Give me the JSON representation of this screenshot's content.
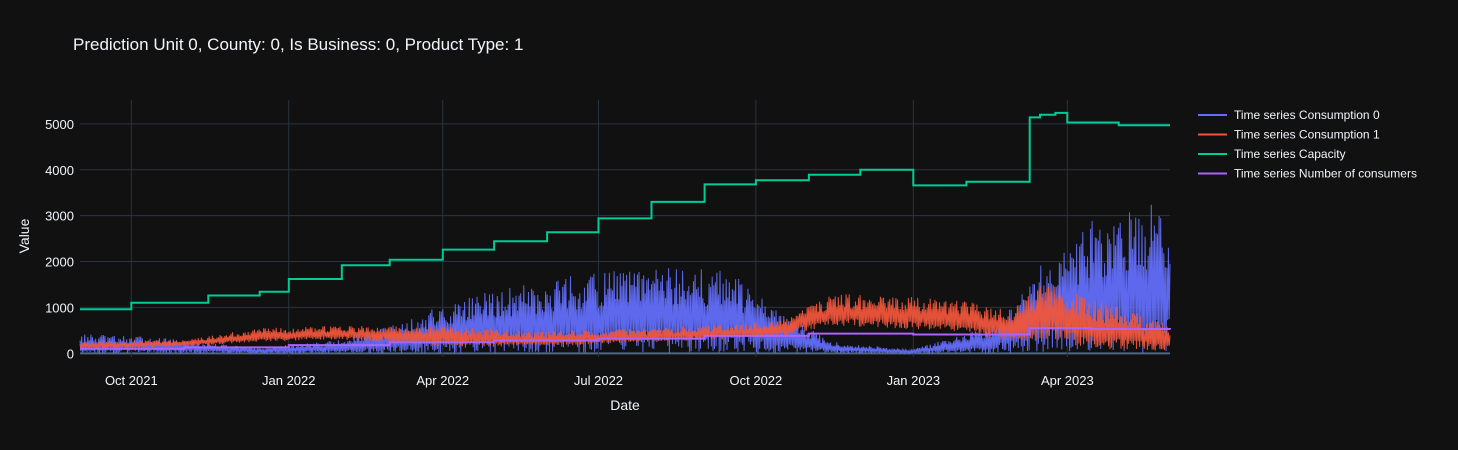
{
  "chart_data": {
    "type": "line",
    "title": "Prediction Unit 0, County: 0, Is Business: 0, Product Type: 1",
    "xlabel": "Date",
    "ylabel": "Value",
    "xlim": [
      "2021-09-01",
      "2023-05-31"
    ],
    "ylim": [
      -80,
      5520
    ],
    "y_ticks": [
      0,
      1000,
      2000,
      3000,
      4000,
      5000
    ],
    "x_ticks": [
      {
        "date": "2021-10-01",
        "label": "Oct 2021"
      },
      {
        "date": "2022-01-01",
        "label": "Jan 2022"
      },
      {
        "date": "2022-04-01",
        "label": "Apr 2022"
      },
      {
        "date": "2022-07-01",
        "label": "Jul 2022"
      },
      {
        "date": "2022-10-01",
        "label": "Oct 2022"
      },
      {
        "date": "2023-01-01",
        "label": "Jan 2023"
      },
      {
        "date": "2023-04-01",
        "label": "Apr 2023"
      }
    ],
    "grid": true,
    "legend_position": "top-right",
    "series": [
      {
        "name": "Time series Consumption 0",
        "color": "#636efa",
        "style": "dense-oscillation",
        "envelope": [
          {
            "date": "2021-09-01",
            "low": 0,
            "high": 420
          },
          {
            "date": "2021-10-15",
            "low": 0,
            "high": 350
          },
          {
            "date": "2021-12-15",
            "low": 0,
            "high": 120
          },
          {
            "date": "2022-02-01",
            "low": 0,
            "high": 300
          },
          {
            "date": "2022-03-01",
            "low": 0,
            "high": 600
          },
          {
            "date": "2022-04-01",
            "low": 0,
            "high": 1050
          },
          {
            "date": "2022-05-01",
            "low": 0,
            "high": 1400
          },
          {
            "date": "2022-06-15",
            "low": 0,
            "high": 1700
          },
          {
            "date": "2022-08-01",
            "low": 0,
            "high": 1900
          },
          {
            "date": "2022-09-15",
            "low": 0,
            "high": 1800
          },
          {
            "date": "2022-10-15",
            "low": 0,
            "high": 900
          },
          {
            "date": "2022-11-15",
            "low": 0,
            "high": 250
          },
          {
            "date": "2022-12-31",
            "low": 0,
            "high": 80
          },
          {
            "date": "2023-02-15",
            "low": 0,
            "high": 600
          },
          {
            "date": "2023-03-15",
            "low": 0,
            "high": 2000
          },
          {
            "date": "2023-04-15",
            "low": 0,
            "high": 2900
          },
          {
            "date": "2023-05-31",
            "low": 0,
            "high": 3400
          }
        ]
      },
      {
        "name": "Time series Consumption 1",
        "color": "#ef553b",
        "style": "dense-oscillation",
        "envelope": [
          {
            "date": "2021-09-01",
            "low": 100,
            "high": 250
          },
          {
            "date": "2021-11-01",
            "low": 150,
            "high": 300
          },
          {
            "date": "2021-12-15",
            "low": 250,
            "high": 550
          },
          {
            "date": "2022-02-01",
            "low": 300,
            "high": 600
          },
          {
            "date": "2022-04-01",
            "low": 150,
            "high": 600
          },
          {
            "date": "2022-06-01",
            "low": 150,
            "high": 500
          },
          {
            "date": "2022-08-01",
            "low": 250,
            "high": 550
          },
          {
            "date": "2022-10-15",
            "low": 350,
            "high": 700
          },
          {
            "date": "2022-11-15",
            "low": 600,
            "high": 1300
          },
          {
            "date": "2023-01-15",
            "low": 500,
            "high": 1200
          },
          {
            "date": "2023-03-01",
            "low": 250,
            "high": 1000
          },
          {
            "date": "2023-03-20",
            "low": 300,
            "high": 1600
          },
          {
            "date": "2023-04-15",
            "low": 100,
            "high": 1200
          },
          {
            "date": "2023-05-31",
            "low": 50,
            "high": 650
          }
        ]
      },
      {
        "name": "Time series Capacity",
        "color": "#00cc96",
        "style": "step",
        "points": [
          {
            "date": "2021-09-01",
            "value": 960
          },
          {
            "date": "2021-10-01",
            "value": 1100
          },
          {
            "date": "2021-11-15",
            "value": 1260
          },
          {
            "date": "2021-12-15",
            "value": 1340
          },
          {
            "date": "2022-01-01",
            "value": 1620
          },
          {
            "date": "2022-02-01",
            "value": 1920
          },
          {
            "date": "2022-03-01",
            "value": 2040
          },
          {
            "date": "2022-04-01",
            "value": 2260
          },
          {
            "date": "2022-05-01",
            "value": 2440
          },
          {
            "date": "2022-06-01",
            "value": 2640
          },
          {
            "date": "2022-07-01",
            "value": 2940
          },
          {
            "date": "2022-08-01",
            "value": 3300
          },
          {
            "date": "2022-09-01",
            "value": 3680
          },
          {
            "date": "2022-10-01",
            "value": 3770
          },
          {
            "date": "2022-11-01",
            "value": 3890
          },
          {
            "date": "2022-12-01",
            "value": 4000
          },
          {
            "date": "2023-01-01",
            "value": 3660
          },
          {
            "date": "2023-02-01",
            "value": 3740
          },
          {
            "date": "2023-03-01",
            "value": 3740
          },
          {
            "date": "2023-03-10",
            "value": 5140
          },
          {
            "date": "2023-03-16",
            "value": 5200
          },
          {
            "date": "2023-03-25",
            "value": 5240
          },
          {
            "date": "2023-04-01",
            "value": 5030
          },
          {
            "date": "2023-05-01",
            "value": 4970
          },
          {
            "date": "2023-05-31",
            "value": 4970
          }
        ]
      },
      {
        "name": "Time series Number of consumers",
        "color": "#ab63fa",
        "style": "step",
        "points": [
          {
            "date": "2021-09-01",
            "value": 100
          },
          {
            "date": "2021-11-01",
            "value": 130
          },
          {
            "date": "2022-01-01",
            "value": 180
          },
          {
            "date": "2022-03-01",
            "value": 240
          },
          {
            "date": "2022-05-01",
            "value": 280
          },
          {
            "date": "2022-07-01",
            "value": 320
          },
          {
            "date": "2022-09-01",
            "value": 380
          },
          {
            "date": "2022-11-01",
            "value": 430
          },
          {
            "date": "2023-01-01",
            "value": 410
          },
          {
            "date": "2023-03-10",
            "value": 550
          },
          {
            "date": "2023-04-15",
            "value": 530
          },
          {
            "date": "2023-05-31",
            "value": 520
          }
        ]
      }
    ]
  }
}
